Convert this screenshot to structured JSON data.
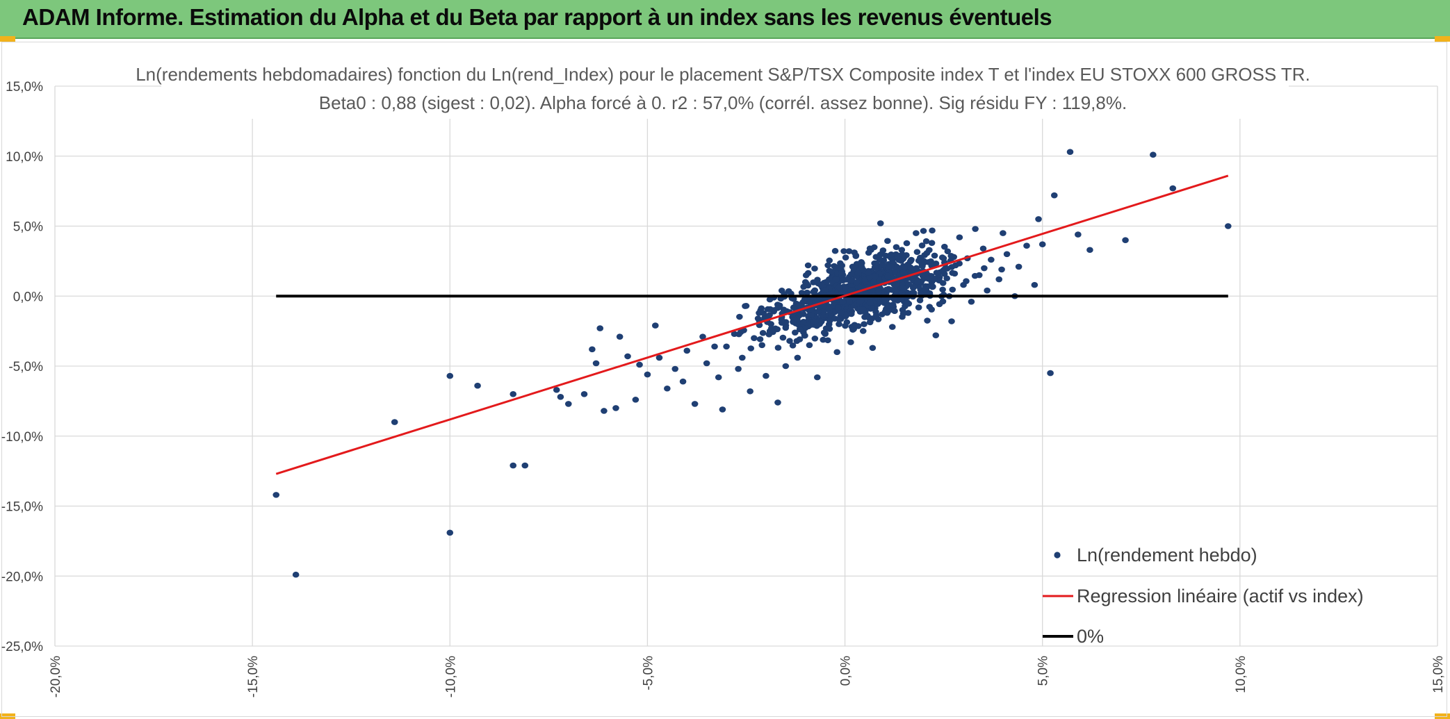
{
  "header": {
    "title": "ADAM Informe. Estimation du Alpha et du Beta par rapport à un index sans les revenus éventuels"
  },
  "colors": {
    "banner": "#7dc77c",
    "points": "#1f3f73",
    "regression": "#e31a1c",
    "zero_line": "#000000",
    "gridlines": "#d9d9d9"
  },
  "chart_data": {
    "type": "scatter",
    "title": "Ln(rendements hebdomadaires) fonction du Ln(rend_Index) pour le placement S&P/TSX Composite index T et l'index EU STOXX 600 GROSS TR.",
    "subtitle": "Beta0 : 0,88 (sigest : 0,02). Alpha forcé à 0. r2 : 57,0% (corrél. assez bonne). Sig résidu FY : 119,8%.",
    "xlim": [
      -0.2,
      0.15
    ],
    "ylim": [
      -0.25,
      0.15
    ],
    "x_ticks": [
      "-20,0%",
      "-15,0%",
      "-10,0%",
      "-5,0%",
      "0,0%",
      "5,0%",
      "10,0%",
      "15,0%"
    ],
    "y_ticks": [
      "15,0%",
      "10,0%",
      "5,0%",
      "0,0%",
      "-5,0%",
      "-10,0%",
      "-15,0%",
      "-20,0%",
      "-25,0%"
    ],
    "grid": true,
    "legend_position": "bottom-right",
    "series": [
      {
        "name": "Ln(rendement hebdo)",
        "kind": "scatter",
        "points": [
          [
            -0.144,
            -0.142
          ],
          [
            -0.139,
            -0.199
          ],
          [
            -0.114,
            -0.09
          ],
          [
            -0.1,
            -0.169
          ],
          [
            -0.1,
            -0.057
          ],
          [
            -0.093,
            -0.064
          ],
          [
            -0.084,
            -0.07
          ],
          [
            -0.084,
            -0.121
          ],
          [
            -0.081,
            -0.121
          ],
          [
            -0.073,
            -0.067
          ],
          [
            -0.072,
            -0.072
          ],
          [
            -0.07,
            -0.077
          ],
          [
            -0.066,
            -0.07
          ],
          [
            -0.064,
            -0.038
          ],
          [
            -0.063,
            -0.048
          ],
          [
            -0.062,
            -0.023
          ],
          [
            -0.061,
            -0.082
          ],
          [
            -0.058,
            -0.08
          ],
          [
            -0.057,
            -0.029
          ],
          [
            -0.055,
            -0.043
          ],
          [
            -0.053,
            -0.074
          ],
          [
            -0.052,
            -0.049
          ],
          [
            -0.05,
            -0.056
          ],
          [
            -0.048,
            -0.021
          ],
          [
            -0.047,
            -0.044
          ],
          [
            -0.045,
            -0.066
          ],
          [
            -0.043,
            -0.052
          ],
          [
            -0.041,
            -0.061
          ],
          [
            -0.04,
            -0.039
          ],
          [
            -0.038,
            -0.077
          ],
          [
            -0.036,
            -0.029
          ],
          [
            -0.035,
            -0.048
          ],
          [
            -0.033,
            -0.036
          ],
          [
            -0.032,
            -0.058
          ],
          [
            -0.031,
            -0.081
          ],
          [
            -0.03,
            -0.036
          ],
          [
            -0.028,
            -0.027
          ],
          [
            -0.027,
            -0.052
          ],
          [
            -0.026,
            -0.044
          ],
          [
            -0.025,
            -0.007
          ],
          [
            -0.024,
            -0.068
          ],
          [
            -0.023,
            -0.03
          ],
          [
            -0.022,
            -0.016
          ],
          [
            -0.021,
            -0.035
          ],
          [
            -0.02,
            -0.057
          ],
          [
            -0.019,
            -0.025
          ],
          [
            -0.018,
            -0.001
          ],
          [
            -0.017,
            -0.076
          ],
          [
            -0.016,
            -0.019
          ],
          [
            -0.015,
            -0.05
          ],
          [
            -0.014,
            -0.032
          ],
          [
            -0.013,
            -0.002
          ],
          [
            -0.012,
            -0.044
          ],
          [
            -0.011,
            -0.021
          ],
          [
            -0.01,
            0.01
          ],
          [
            -0.009,
            -0.035
          ],
          [
            -0.008,
            -0.015
          ],
          [
            -0.007,
            -0.058
          ],
          [
            -0.006,
            -0.001
          ],
          [
            -0.005,
            -0.027
          ],
          [
            -0.004,
            0.012
          ],
          [
            -0.003,
            -0.012
          ],
          [
            -0.002,
            -0.04
          ],
          [
            -0.001,
            0.019
          ],
          [
            0.0,
            -0.01
          ],
          [
            0.001,
            0.005
          ],
          [
            0.002,
            -0.024
          ],
          [
            0.003,
            0.023
          ],
          [
            0.004,
            0.002
          ],
          [
            0.005,
            -0.015
          ],
          [
            0.006,
            0.031
          ],
          [
            0.007,
            -0.037
          ],
          [
            0.008,
            0.009
          ],
          [
            0.009,
            0.052
          ],
          [
            0.01,
            -0.005
          ],
          [
            0.011,
            0.018
          ],
          [
            0.012,
            -0.022
          ],
          [
            0.013,
            0.035
          ],
          [
            0.014,
            0.003
          ],
          [
            0.015,
            0.028
          ],
          [
            0.016,
            -0.012
          ],
          [
            0.017,
            0.014
          ],
          [
            0.018,
            0.045
          ],
          [
            0.019,
            -0.003
          ],
          [
            0.02,
            0.025
          ],
          [
            0.021,
            0.007
          ],
          [
            0.022,
            0.038
          ],
          [
            0.023,
            -0.028
          ],
          [
            0.024,
            0.017
          ],
          [
            0.025,
            0.001
          ],
          [
            0.026,
            0.032
          ],
          [
            0.027,
            -0.018
          ],
          [
            0.028,
            0.022
          ],
          [
            0.029,
            0.042
          ],
          [
            0.03,
            0.008
          ],
          [
            0.031,
            0.027
          ],
          [
            0.032,
            -0.004
          ],
          [
            0.033,
            0.048
          ],
          [
            0.034,
            0.015
          ],
          [
            0.035,
            0.034
          ],
          [
            0.036,
            0.004
          ],
          [
            0.037,
            0.026
          ],
          [
            0.039,
            0.012
          ],
          [
            0.04,
            0.045
          ],
          [
            0.041,
            0.03
          ],
          [
            0.043,
            0.0
          ],
          [
            0.044,
            0.021
          ],
          [
            0.046,
            0.036
          ],
          [
            0.048,
            0.008
          ],
          [
            0.049,
            0.055
          ],
          [
            0.05,
            0.037
          ],
          [
            0.052,
            -0.055
          ],
          [
            0.053,
            0.072
          ],
          [
            0.057,
            0.103
          ],
          [
            0.059,
            0.044
          ],
          [
            0.062,
            0.033
          ],
          [
            0.071,
            0.04
          ],
          [
            0.078,
            0.101
          ],
          [
            0.083,
            0.077
          ],
          [
            0.097,
            0.05
          ]
        ]
      },
      {
        "name": "Regression linéaire (actif vs index)",
        "kind": "line",
        "x": [
          -0.144,
          0.097
        ],
        "y": [
          -0.127,
          0.086
        ]
      },
      {
        "name": "0%",
        "kind": "line",
        "x": [
          -0.144,
          0.097
        ],
        "y": [
          0.0,
          0.0
        ]
      }
    ]
  }
}
